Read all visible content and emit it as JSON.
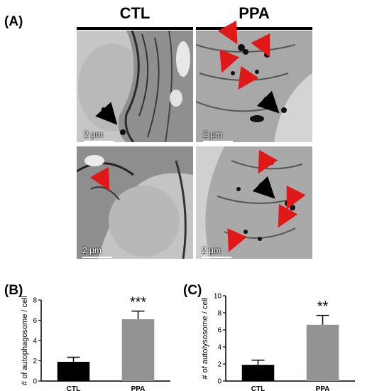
{
  "panels": {
    "a": {
      "label": "(A)",
      "columns": [
        "CTL",
        "PPA"
      ],
      "scale_bar": "2 μm"
    },
    "b": {
      "label": "(B)"
    },
    "c": {
      "label": "(C)"
    }
  },
  "arrows": {
    "ctl_top": {
      "red": 0,
      "black": 1
    },
    "ctl_bottom": {
      "red": 1,
      "black": 0
    },
    "ppa_top": {
      "red": 4,
      "black": 1
    },
    "ppa_bottom": {
      "red": 4,
      "black": 1
    }
  },
  "chart_data": [
    {
      "type": "bar",
      "panel": "(B)",
      "categories": [
        "CTL",
        "PPA"
      ],
      "values": [
        1.9,
        6.1
      ],
      "errors": [
        0.45,
        0.8
      ],
      "colors": [
        "#000000",
        "#939393"
      ],
      "ylabel": "# of autophagosome / cell",
      "ylim": [
        0,
        8
      ],
      "yticks": [
        "0",
        "2",
        "4",
        "6",
        "8"
      ],
      "significance": "***"
    },
    {
      "type": "bar",
      "panel": "(C)",
      "categories": [
        "CTL",
        "PPA"
      ],
      "values": [
        1.9,
        6.6
      ],
      "errors": [
        0.55,
        1.1
      ],
      "colors": [
        "#000000",
        "#939393"
      ],
      "ylabel": "# of autolysosome / cell",
      "ylim": [
        0,
        10
      ],
      "yticks": [
        "0",
        "2",
        "4",
        "6",
        "8",
        "10"
      ],
      "significance": "**"
    }
  ]
}
